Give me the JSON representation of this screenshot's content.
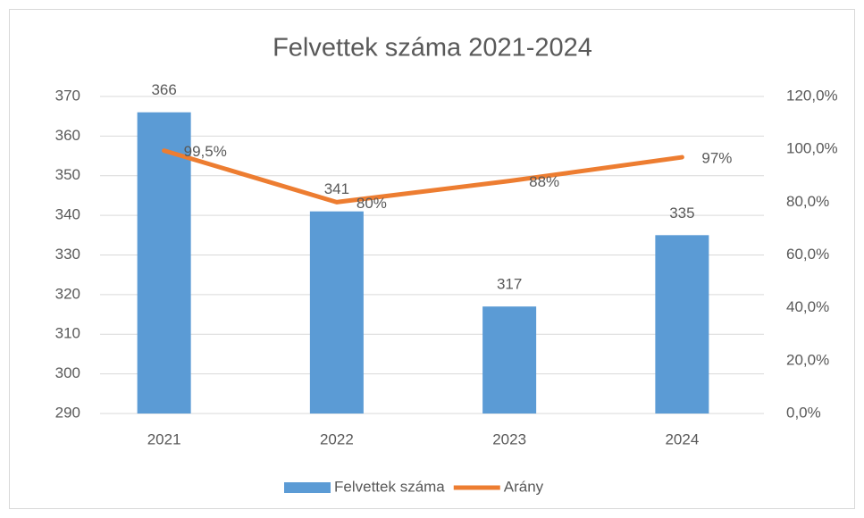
{
  "chart_data": {
    "type": "combo",
    "title": "Felvettek száma 2021-2024",
    "categories": [
      "2021",
      "2022",
      "2023",
      "2024"
    ],
    "series": [
      {
        "name": "Felvettek száma",
        "type": "bar",
        "color": "#5b9bd5",
        "values": [
          366,
          341,
          317,
          335
        ]
      },
      {
        "name": "Arány",
        "type": "line",
        "axis": "y2",
        "color": "#ed7d31",
        "values": [
          99.5,
          80,
          88,
          97
        ],
        "value_labels": [
          "99,5%",
          "80%",
          "88%",
          "97%"
        ]
      }
    ],
    "ylim": [
      290,
      370
    ],
    "yticks": [
      290,
      300,
      310,
      320,
      330,
      340,
      350,
      360,
      370
    ],
    "y2lim": [
      0,
      120
    ],
    "y2ticks": [
      {
        "value": 0,
        "label": "0,0%"
      },
      {
        "value": 20,
        "label": "20,0%"
      },
      {
        "value": 40,
        "label": "40,0%"
      },
      {
        "value": 60,
        "label": "60,0%"
      },
      {
        "value": 80,
        "label": "80,0%"
      },
      {
        "value": 100,
        "label": "100,0%"
      },
      {
        "value": 120,
        "label": "120,0%"
      }
    ],
    "grid": true,
    "legend": "bottom"
  }
}
